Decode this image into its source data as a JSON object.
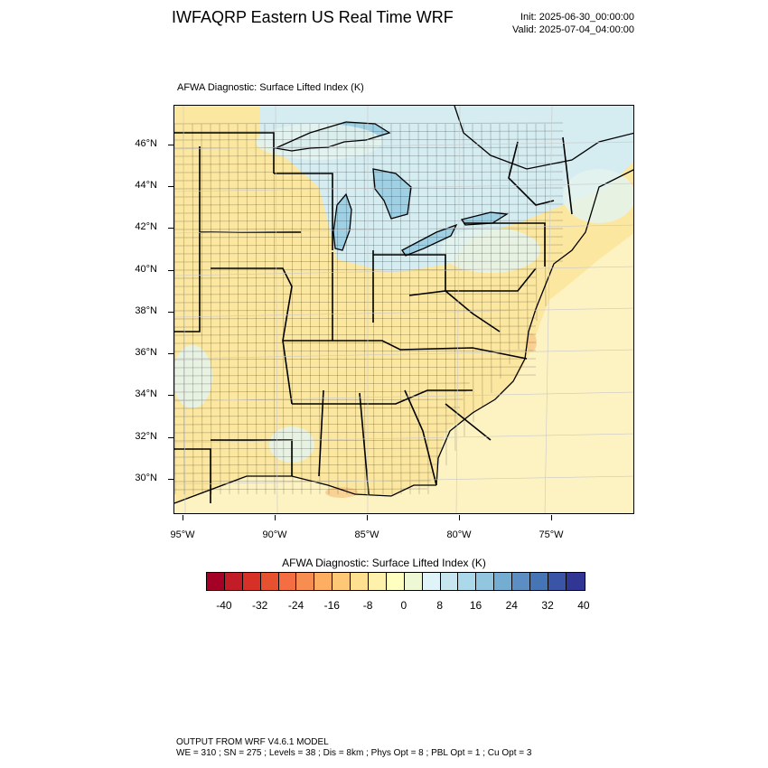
{
  "header": {
    "title": "IWFAQRP Eastern US Real Time WRF",
    "init": "Init: 2025-06-30_00:00:00",
    "valid": "Valid: 2025-07-04_04:00:00"
  },
  "map": {
    "field_title": "AFWA Diagnostic: Surface Lifted Index   (K)",
    "lat_labels": [
      "46°N",
      "44°N",
      "42°N",
      "40°N",
      "38°N",
      "36°N",
      "34°N",
      "32°N",
      "30°N"
    ],
    "lon_labels": [
      "95°W",
      "90°W",
      "85°W",
      "80°W",
      "75°W"
    ],
    "colors": {
      "land_base": "#fce7a0",
      "ocean_base": "#fdf2c2",
      "canada_lakes": "#d5ecf0",
      "lake_deep": "#9fd0e3",
      "stable_patch": "#e4f3ef",
      "warm_patch": "#f6c98a"
    }
  },
  "colorbar": {
    "title": "AFWA Diagnostic: Surface Lifted Index  (K)",
    "colors": [
      "#a50026",
      "#c21c27",
      "#d73027",
      "#e6512f",
      "#f46d43",
      "#f88d52",
      "#fdae61",
      "#fec877",
      "#fee090",
      "#fdf1ac",
      "#ffffbf",
      "#eef8d5",
      "#e0f3f8",
      "#c7e6ef",
      "#abd9e9",
      "#92c5de",
      "#74add1",
      "#5c8ec3",
      "#4575b4",
      "#3a55a5",
      "#313695"
    ],
    "labels": [
      "-40",
      "-32",
      "-24",
      "-16",
      "-8",
      "0",
      "8",
      "16",
      "24",
      "32",
      "40"
    ]
  },
  "footer": {
    "line1": "OUTPUT FROM WRF V4.6.1 MODEL",
    "line2": "WE = 310 ; SN = 275 ; Levels = 38 ; Dis = 8km ; Phys Opt = 8 ; PBL Opt = 1 ; Cu Opt = 3"
  }
}
